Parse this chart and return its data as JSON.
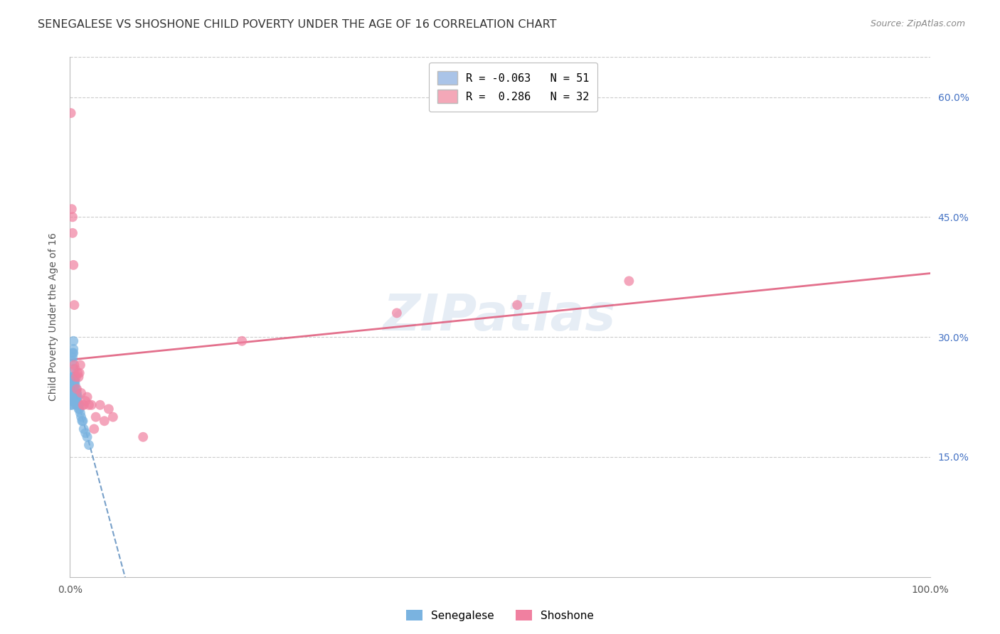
{
  "title": "SENEGALESE VS SHOSHONE CHILD POVERTY UNDER THE AGE OF 16 CORRELATION CHART",
  "source": "Source: ZipAtlas.com",
  "ylabel": "Child Poverty Under the Age of 16",
  "xlim": [
    0.0,
    1.0
  ],
  "ylim": [
    0.0,
    0.65
  ],
  "xtick_labels": [
    "0.0%",
    "100.0%"
  ],
  "xtick_positions": [
    0.0,
    1.0
  ],
  "ytick_labels": [
    "15.0%",
    "30.0%",
    "45.0%",
    "60.0%"
  ],
  "ytick_positions": [
    0.15,
    0.3,
    0.45,
    0.6
  ],
  "legend_entries": [
    {
      "label": "R = -0.063   N = 51",
      "color": "#aac4e8"
    },
    {
      "label": "R =  0.286   N = 32",
      "color": "#f4a8b8"
    }
  ],
  "senegalese_color": "#7ab3e0",
  "shoshone_color": "#f080a0",
  "trend_senegalese_color": "#6090c0",
  "trend_shoshone_color": "#e06080",
  "bg_color": "#ffffff",
  "grid_color": "#cccccc",
  "watermark": "ZIPatlas",
  "senegalese_x": [
    0.001,
    0.001,
    0.001,
    0.002,
    0.002,
    0.002,
    0.002,
    0.002,
    0.003,
    0.003,
    0.003,
    0.003,
    0.003,
    0.003,
    0.003,
    0.004,
    0.004,
    0.004,
    0.004,
    0.004,
    0.004,
    0.005,
    0.005,
    0.005,
    0.005,
    0.005,
    0.006,
    0.006,
    0.006,
    0.006,
    0.007,
    0.007,
    0.007,
    0.007,
    0.008,
    0.008,
    0.008,
    0.009,
    0.009,
    0.01,
    0.01,
    0.011,
    0.011,
    0.012,
    0.013,
    0.014,
    0.015,
    0.016,
    0.018,
    0.02,
    0.022
  ],
  "senegalese_y": [
    0.23,
    0.215,
    0.225,
    0.215,
    0.22,
    0.225,
    0.23,
    0.235,
    0.27,
    0.275,
    0.28,
    0.25,
    0.245,
    0.24,
    0.235,
    0.295,
    0.285,
    0.28,
    0.26,
    0.25,
    0.23,
    0.25,
    0.245,
    0.24,
    0.23,
    0.22,
    0.245,
    0.24,
    0.23,
    0.22,
    0.235,
    0.23,
    0.225,
    0.215,
    0.23,
    0.225,
    0.22,
    0.225,
    0.215,
    0.215,
    0.21,
    0.215,
    0.21,
    0.205,
    0.2,
    0.195,
    0.195,
    0.185,
    0.18,
    0.175,
    0.165
  ],
  "shoshone_x": [
    0.001,
    0.002,
    0.003,
    0.003,
    0.004,
    0.005,
    0.005,
    0.006,
    0.007,
    0.008,
    0.009,
    0.01,
    0.011,
    0.012,
    0.013,
    0.015,
    0.016,
    0.018,
    0.02,
    0.022,
    0.025,
    0.028,
    0.03,
    0.035,
    0.04,
    0.045,
    0.05,
    0.085,
    0.2,
    0.38,
    0.52,
    0.65
  ],
  "shoshone_y": [
    0.58,
    0.46,
    0.45,
    0.43,
    0.39,
    0.34,
    0.265,
    0.26,
    0.25,
    0.235,
    0.255,
    0.25,
    0.255,
    0.265,
    0.23,
    0.215,
    0.215,
    0.22,
    0.225,
    0.215,
    0.215,
    0.185,
    0.2,
    0.215,
    0.195,
    0.21,
    0.2,
    0.175,
    0.295,
    0.33,
    0.34,
    0.37
  ],
  "marker_size": 100,
  "alpha": 0.7,
  "title_fontsize": 11.5,
  "axis_fontsize": 10,
  "tick_fontsize": 10,
  "legend_fontsize": 11
}
